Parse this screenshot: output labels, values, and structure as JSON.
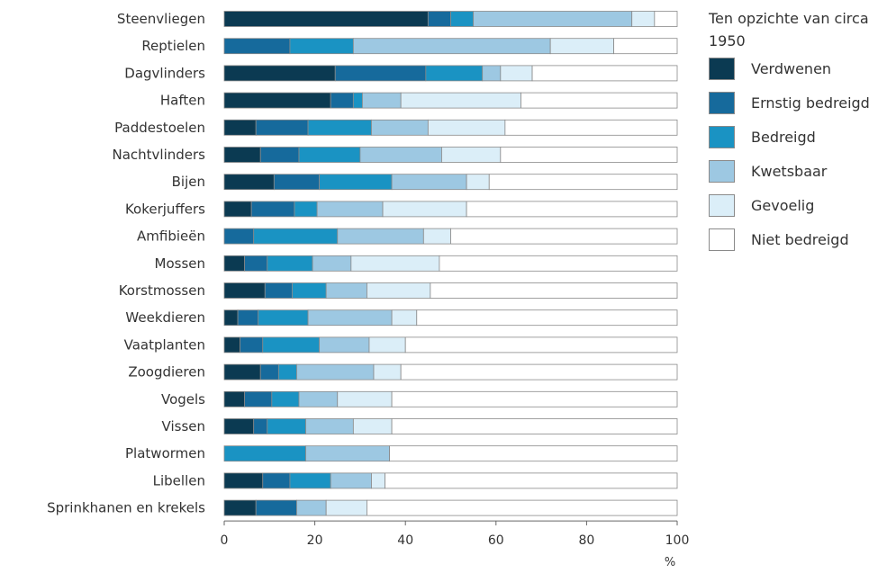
{
  "chart_data": {
    "type": "bar",
    "orientation": "horizontal",
    "stacked": true,
    "title": "",
    "xlabel": "%",
    "ylabel": "",
    "xlim": [
      0,
      100
    ],
    "xticks": [
      "0",
      "20",
      "40",
      "60",
      "80",
      "100"
    ],
    "grid": false,
    "legend_position": "right",
    "legend_title": "Ten opzichte van circa 1950",
    "categories": [
      "Steenvliegen",
      "Reptielen",
      "Dagvlinders",
      "Haften",
      "Paddestoelen",
      "Nachtvlinders",
      "Bijen",
      "Kokerjuffers",
      "Amfibieën",
      "Mossen",
      "Korstmossen",
      "Weekdieren",
      "Vaatplanten",
      "Zoogdieren",
      "Vogels",
      "Vissen",
      "Platwormen",
      "Libellen",
      "Sprinkhanen en krekels"
    ],
    "series": [
      {
        "name": "Verdwenen",
        "color": "#0b3a52",
        "values": [
          45,
          0,
          24.5,
          23.5,
          7,
          8,
          11,
          6,
          0,
          4.5,
          9,
          3,
          3.5,
          8,
          4.5,
          6.5,
          0,
          8.5,
          7
        ]
      },
      {
        "name": "Ernstig bedreigd",
        "color": "#166a9c",
        "values": [
          5,
          14.5,
          20,
          5,
          11.5,
          8.5,
          10,
          9.5,
          6.5,
          5,
          6,
          4.5,
          5,
          4,
          6,
          3,
          0,
          6,
          9
        ]
      },
      {
        "name": "Bedreigd",
        "color": "#1a93c3",
        "values": [
          5,
          14,
          12.5,
          2,
          14,
          13.5,
          16,
          5,
          18.5,
          10,
          7.5,
          11,
          12.5,
          4,
          6,
          8.5,
          18,
          9,
          0
        ]
      },
      {
        "name": "Kwetsbaar",
        "color": "#9dc8e2",
        "values": [
          35,
          43.5,
          4,
          8.5,
          12.5,
          18,
          16.5,
          14.5,
          19,
          8.5,
          9,
          18.5,
          11,
          17,
          8.5,
          10.5,
          18.5,
          9,
          6.5
        ]
      },
      {
        "name": "Gevoelig",
        "color": "#dbeef8",
        "values": [
          5,
          14,
          7,
          26.5,
          17,
          13,
          5,
          18.5,
          6,
          19.5,
          14,
          5.5,
          8,
          6,
          12,
          8.5,
          0,
          3,
          9
        ]
      },
      {
        "name": "Niet bedreigd",
        "color": "#ffffff",
        "values": [
          5,
          14,
          32,
          34.5,
          38,
          39,
          41.5,
          46.5,
          50,
          52.5,
          54.5,
          57.5,
          60,
          61,
          63,
          63,
          63.5,
          64.5,
          68.5
        ]
      }
    ]
  }
}
